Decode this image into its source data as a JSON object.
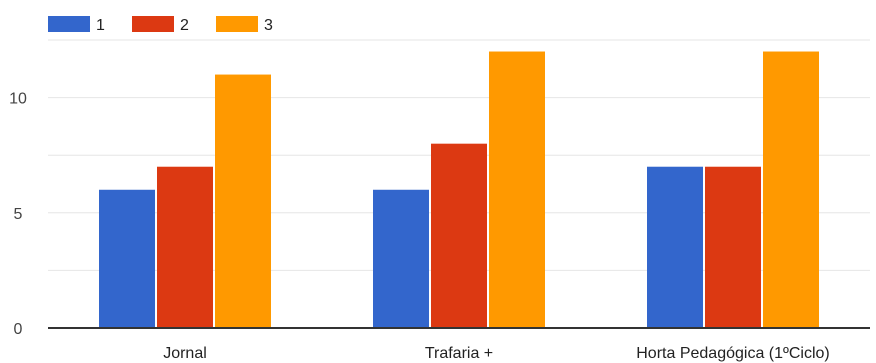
{
  "chart_data": {
    "type": "bar",
    "categories": [
      "Jornal",
      "Trafaria +",
      "Horta Pedagógica (1ºCiclo)"
    ],
    "series": [
      {
        "name": "1",
        "values": [
          6,
          6,
          7
        ],
        "color": "#3366cc"
      },
      {
        "name": "2",
        "values": [
          7,
          8,
          7
        ],
        "color": "#dc3912"
      },
      {
        "name": "3",
        "values": [
          11,
          12,
          12
        ],
        "color": "#ff9900"
      }
    ],
    "yticks": [
      0,
      5,
      10
    ],
    "ylim": [
      0,
      12.5
    ],
    "grid": true,
    "legend": "top-left"
  }
}
